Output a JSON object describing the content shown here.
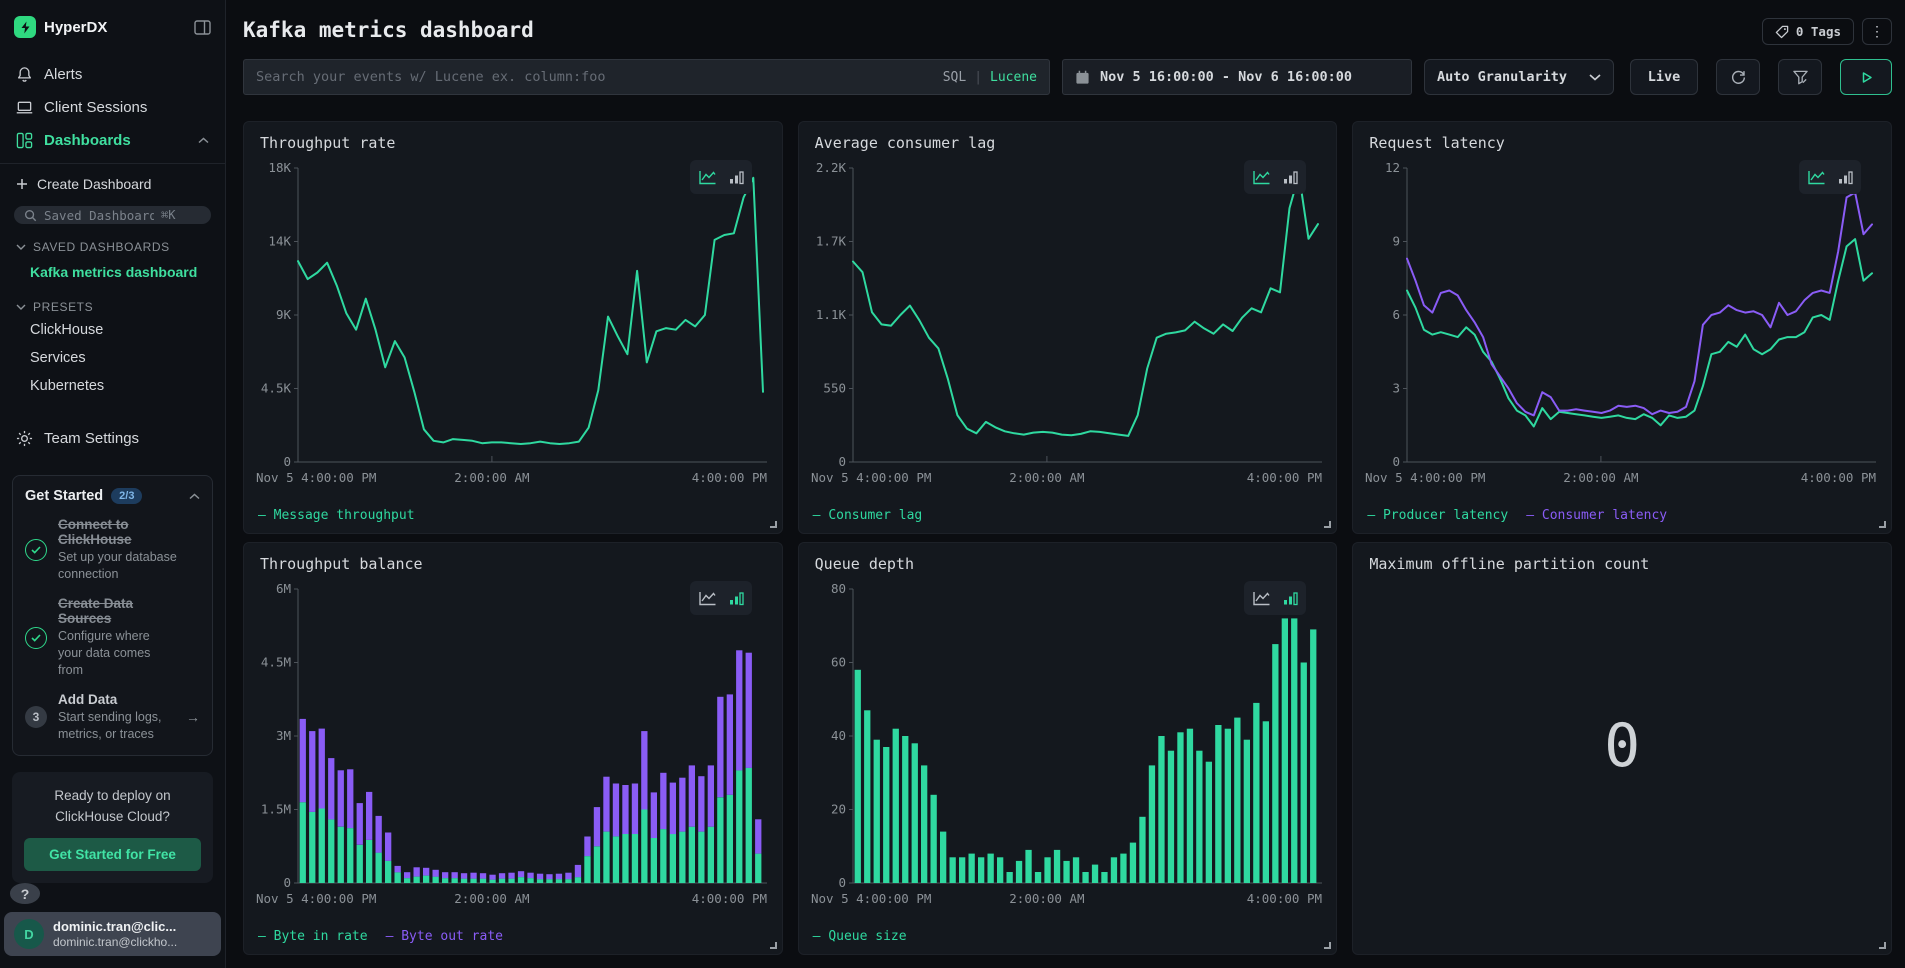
{
  "colors": {
    "green": "#2fd9a0",
    "purple": "#8a5cf6",
    "brand_green": "#2fd980"
  },
  "sidebar": {
    "brand": "HyperDX",
    "nav": [
      {
        "label": "Alerts"
      },
      {
        "label": "Client Sessions"
      },
      {
        "label": "Dashboards"
      }
    ],
    "create_dashboard": "Create Dashboard",
    "search": {
      "placeholder": "Saved Dashboards",
      "shortcut": "⌘K"
    },
    "saved_header": "SAVED DASHBOARDS",
    "saved_dashboard": "Kafka metrics dashboard",
    "presets_header": "PRESETS",
    "presets": [
      "ClickHouse",
      "Services",
      "Kubernetes"
    ],
    "team_settings": "Team Settings",
    "get_started": {
      "title": "Get Started",
      "badge": "2/3",
      "steps": [
        {
          "title": "Connect to ClickHouse",
          "subtitle": "Set up your database connection",
          "done": true
        },
        {
          "title": "Create Data Sources",
          "subtitle": "Configure where your data comes from",
          "done": true
        },
        {
          "title": "Add Data",
          "subtitle": "Start sending logs, metrics, or traces",
          "done": false,
          "step_number": "3"
        }
      ]
    },
    "cloud": {
      "line1": "Ready to deploy on",
      "line2": "ClickHouse Cloud?",
      "cta": "Get Started for Free"
    },
    "help": "?",
    "user": {
      "initial": "D",
      "name": "dominic.tran@clic...",
      "email": "dominic.tran@clickho..."
    }
  },
  "header": {
    "title": "Kafka metrics dashboard",
    "tags_label": "0 Tags"
  },
  "controls": {
    "search_placeholder": "Search your events w/ Lucene ex. column:foo",
    "sql": "SQL",
    "pipe": "|",
    "lucene": "Lucene",
    "date_range": "Nov 5 16:00:00 - Nov 6 16:00:00",
    "granularity": "Auto Granularity",
    "live": "Live"
  },
  "chart_data": [
    {
      "id": "throughput-rate",
      "type": "line",
      "title": "Throughput rate",
      "ymax": 18000,
      "yticks": [
        "0",
        "4.5K",
        "9K",
        "14K",
        "18K"
      ],
      "xticks": [
        {
          "label": "Nov 5 4:00:00 PM",
          "pos": 0
        },
        {
          "label": "2:00:00 AM",
          "pos": 0.417
        },
        {
          "label": "4:00:00 PM",
          "pos": 1
        }
      ],
      "active_mode": "line",
      "series": [
        {
          "name": "Message throughput",
          "color": "#2fd9a0",
          "values": [
            12300,
            11200,
            11600,
            12200,
            10800,
            9100,
            8100,
            10000,
            8100,
            5800,
            7400,
            6400,
            4300,
            2000,
            1300,
            1200,
            1400,
            1350,
            1300,
            1150,
            1200,
            1200,
            1150,
            1100,
            1150,
            1250,
            1150,
            1100,
            1150,
            1250,
            2100,
            4400,
            8900,
            7700,
            6600,
            11700,
            6100,
            8000,
            8200,
            8100,
            8700,
            8300,
            9000,
            13600,
            13900,
            14000,
            16200,
            17400,
            4300
          ]
        }
      ]
    },
    {
      "id": "average-consumer-lag",
      "type": "line",
      "title": "Average consumer lag",
      "ymax": 2200,
      "yticks": [
        "0",
        "550",
        "1.1K",
        "1.7K",
        "2.2K"
      ],
      "xticks": [
        {
          "label": "Nov 5 4:00:00 PM",
          "pos": 0
        },
        {
          "label": "2:00:00 AM",
          "pos": 0.417
        },
        {
          "label": "4:00:00 PM",
          "pos": 1
        }
      ],
      "active_mode": "line",
      "series": [
        {
          "name": "Consumer lag",
          "color": "#2fd9a0",
          "values": [
            1500,
            1420,
            1120,
            1030,
            1020,
            1100,
            1170,
            1060,
            930,
            850,
            620,
            350,
            250,
            215,
            300,
            260,
            230,
            215,
            205,
            220,
            225,
            220,
            205,
            200,
            210,
            230,
            225,
            215,
            205,
            195,
            350,
            700,
            930,
            960,
            970,
            985,
            1050,
            1000,
            960,
            1030,
            980,
            1080,
            1150,
            1120,
            1300,
            1270,
            1900,
            2150,
            1670,
            1780
          ]
        }
      ]
    },
    {
      "id": "request-latency",
      "type": "line",
      "title": "Request latency",
      "ymax": 12,
      "yticks": [
        "0",
        "3",
        "6",
        "9",
        "12"
      ],
      "xticks": [
        {
          "label": "Nov 5 4:00:00 PM",
          "pos": 0
        },
        {
          "label": "2:00:00 AM",
          "pos": 0.417
        },
        {
          "label": "4:00:00 PM",
          "pos": 1
        }
      ],
      "active_mode": "line",
      "series": [
        {
          "name": "Producer latency",
          "color": "#2fd9a0",
          "values": [
            7.0,
            6.3,
            5.4,
            5.2,
            5.3,
            5.2,
            5.1,
            5.5,
            5.2,
            4.5,
            4.1,
            3.4,
            2.6,
            2.1,
            1.9,
            1.45,
            2.2,
            1.75,
            2.05,
            2.0,
            1.95,
            1.9,
            1.85,
            1.8,
            1.85,
            1.9,
            1.8,
            1.75,
            1.95,
            1.8,
            1.5,
            1.9,
            1.8,
            1.85,
            2.1,
            3.1,
            4.4,
            4.5,
            4.9,
            4.7,
            5.2,
            4.6,
            4.4,
            4.6,
            5.0,
            5.1,
            5.1,
            5.3,
            5.9,
            6.0,
            5.8,
            7.4,
            8.8,
            9.1,
            7.4,
            7.7
          ]
        },
        {
          "name": "Consumer latency",
          "color": "#8a5cf6",
          "values": [
            8.3,
            7.4,
            6.4,
            6.1,
            6.9,
            7.0,
            6.8,
            6.2,
            5.7,
            5.1,
            4.0,
            3.5,
            3.0,
            2.4,
            2.05,
            1.9,
            2.85,
            2.65,
            2.1,
            2.1,
            2.15,
            2.1,
            2.05,
            2.0,
            2.1,
            2.3,
            2.25,
            2.3,
            2.2,
            1.95,
            2.1,
            2.0,
            2.05,
            2.25,
            3.3,
            5.6,
            6.0,
            6.1,
            6.4,
            6.2,
            6.1,
            6.15,
            6.0,
            5.5,
            6.5,
            6.0,
            6.15,
            6.6,
            6.9,
            7.0,
            6.9,
            8.6,
            10.8,
            11.0,
            9.3,
            9.7
          ]
        }
      ]
    },
    {
      "id": "throughput-balance",
      "type": "bar",
      "stacked": true,
      "title": "Throughput balance",
      "ymax": 6,
      "yticks": [
        "0",
        "1.5M",
        "3M",
        "4.5M",
        "6M"
      ],
      "xticks": [
        {
          "label": "Nov 5 4:00:00 PM",
          "pos": 0
        },
        {
          "label": "2:00:00 AM",
          "pos": 0.417
        },
        {
          "label": "4:00:00 PM",
          "pos": 1
        }
      ],
      "active_mode": "bar",
      "series": [
        {
          "name": "Byte in rate",
          "color": "#2fd9a0",
          "values": [
            1.65,
            1.45,
            1.52,
            1.3,
            1.15,
            1.12,
            0.78,
            0.88,
            0.62,
            0.45,
            0.22,
            0.1,
            0.13,
            0.15,
            0.13,
            0.1,
            0.1,
            0.09,
            0.09,
            0.09,
            0.07,
            0.09,
            0.09,
            0.12,
            0.1,
            0.08,
            0.08,
            0.08,
            0.08,
            0.12,
            0.55,
            0.75,
            1.05,
            0.95,
            1.0,
            1.0,
            1.5,
            0.92,
            1.1,
            1.0,
            1.05,
            1.15,
            1.05,
            1.15,
            1.75,
            1.8,
            2.3,
            2.35,
            0.6
          ]
        },
        {
          "name": "Byte out rate",
          "color": "#8a5cf6",
          "values": [
            1.7,
            1.65,
            1.63,
            1.25,
            1.15,
            1.2,
            0.85,
            0.98,
            0.75,
            0.58,
            0.13,
            0.12,
            0.19,
            0.16,
            0.14,
            0.12,
            0.12,
            0.11,
            0.12,
            0.11,
            0.1,
            0.11,
            0.12,
            0.12,
            0.11,
            0.11,
            0.1,
            0.11,
            0.13,
            0.25,
            0.4,
            0.8,
            1.12,
            1.08,
            1.0,
            1.03,
            1.6,
            0.93,
            1.15,
            1.05,
            1.1,
            1.25,
            1.13,
            1.25,
            2.05,
            2.05,
            2.45,
            2.35,
            0.7
          ]
        }
      ]
    },
    {
      "id": "queue-depth",
      "type": "bar",
      "stacked": false,
      "title": "Queue depth",
      "ymax": 80,
      "yticks": [
        "0",
        "20",
        "40",
        "60",
        "80"
      ],
      "xticks": [
        {
          "label": "Nov 5 4:00:00 PM",
          "pos": 0
        },
        {
          "label": "2:00:00 AM",
          "pos": 0.417
        },
        {
          "label": "4:00:00 PM",
          "pos": 1
        }
      ],
      "active_mode": "bar",
      "series": [
        {
          "name": "Queue size",
          "color": "#2fd9a0",
          "values": [
            58,
            47,
            39,
            37,
            42,
            40,
            38,
            32,
            24,
            14,
            7,
            7,
            8,
            7,
            8,
            7,
            3,
            6,
            9,
            3,
            7,
            9,
            6,
            7,
            3,
            5,
            3,
            7,
            8,
            11,
            18,
            32,
            40,
            36,
            41,
            42,
            36,
            33,
            43,
            42,
            45,
            39,
            49,
            44,
            65,
            72,
            72,
            60,
            69
          ]
        }
      ]
    },
    {
      "id": "max-offline-partition-count",
      "type": "number",
      "title": "Maximum offline partition count",
      "value": "0"
    }
  ]
}
